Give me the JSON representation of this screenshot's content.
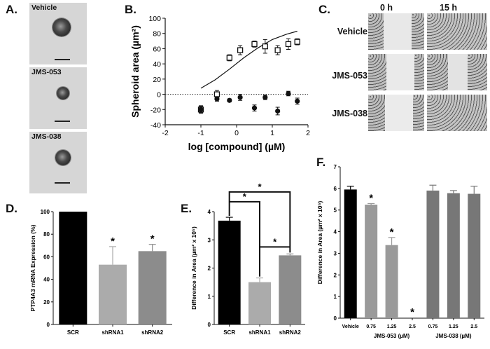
{
  "panels": {
    "A": {
      "letter": "A.",
      "images": [
        "Vehicle",
        "JMS-053",
        "JMS-038"
      ]
    },
    "B": {
      "letter": "B."
    },
    "C": {
      "letter": "C.",
      "columns": [
        "0 h",
        "15 h"
      ],
      "rows": [
        "Vehicle",
        "JMS-053",
        "JMS-038"
      ]
    },
    "D": {
      "letter": "D."
    },
    "E": {
      "letter": "E."
    },
    "F": {
      "letter": "F."
    }
  },
  "chart_data": [
    {
      "id": "B",
      "type": "scatter",
      "xlabel": "log [compound] (µM)",
      "ylabel": "Spheroid area (µm²)",
      "xlim": [
        -2,
        2
      ],
      "ylim": [
        -40,
        100
      ],
      "xticks": [
        "-2",
        "-1",
        "0",
        "1",
        "2"
      ],
      "yticks": [
        "-40",
        "-20",
        "0",
        "20",
        "40",
        "60",
        "80",
        "100"
      ],
      "series": [
        {
          "name": "open squares",
          "marker": "square-open",
          "x": [
            -1.0,
            -0.55,
            -0.2,
            0.1,
            0.5,
            0.8,
            1.15,
            1.45,
            1.7
          ],
          "y": [
            -20,
            0,
            48,
            58,
            66,
            63,
            58,
            66,
            69
          ],
          "err": [
            4,
            5,
            4,
            6,
            4,
            9,
            6,
            7,
            4
          ]
        },
        {
          "name": "filled circles",
          "marker": "circle-filled",
          "x": [
            -1.0,
            -0.55,
            -0.2,
            0.1,
            0.5,
            0.8,
            1.15,
            1.45,
            1.7
          ],
          "y": [
            -20,
            -6,
            -8,
            -4,
            -18,
            -4,
            -22,
            1,
            -9
          ],
          "err": [
            5,
            3,
            2,
            4,
            4,
            3,
            5,
            3,
            4
          ]
        }
      ],
      "fit_curve": {
        "x": [
          -1,
          -0.6,
          -0.2,
          0.2,
          0.6,
          1.0,
          1.4,
          1.7
        ],
        "y": [
          8,
          19,
          33,
          48,
          61,
          72,
          79,
          83
        ]
      },
      "reference_line_y": 0
    },
    {
      "id": "D",
      "type": "bar",
      "ylabel": "PTP4A3 mRNA Expression (%)",
      "categories": [
        "SCR",
        "shRNA1",
        "shRNA2"
      ],
      "values": [
        100,
        53,
        65
      ],
      "errors": [
        0,
        16,
        6
      ],
      "colors": [
        "#000000",
        "#ababab",
        "#8c8c8c"
      ],
      "significance": [
        "",
        "*",
        "*"
      ],
      "ylim": [
        0,
        100
      ],
      "yticks": [
        "0",
        "20",
        "40",
        "60",
        "80",
        "100"
      ]
    },
    {
      "id": "E",
      "type": "bar",
      "ylabel": "Difference in Area  (µm² x 10⁵)",
      "categories": [
        "SCR",
        "shRNA1",
        "shRNA2"
      ],
      "values": [
        3.68,
        1.5,
        2.45
      ],
      "errors": [
        0.12,
        0.15,
        0.05
      ],
      "colors": [
        "#000000",
        "#ababab",
        "#8c8c8c"
      ],
      "ylim": [
        0,
        4
      ],
      "yticks": [
        "0",
        "1",
        "2",
        "3",
        "4"
      ],
      "brackets": [
        {
          "from": 0,
          "to": 1,
          "label": "*"
        },
        {
          "from": 0,
          "to": 2,
          "label": "*"
        },
        {
          "from": 1,
          "to": 2,
          "label": "*"
        }
      ]
    },
    {
      "id": "F",
      "type": "bar",
      "ylabel": "Difference in Area (µm² x 10⁵)",
      "categories": [
        "Vehicle",
        "0.75",
        "1.25",
        "2.5",
        "0.75",
        "1.25",
        "2.5"
      ],
      "values": [
        5.95,
        5.25,
        3.38,
        0,
        5.9,
        5.78,
        5.75
      ],
      "errors": [
        0.15,
        0.05,
        0.35,
        0,
        0.25,
        0.12,
        0.35
      ],
      "colors": [
        "#000000",
        "#9a9a9a",
        "#9a9a9a",
        "#9a9a9a",
        "#777777",
        "#777777",
        "#777777"
      ],
      "significance": [
        "",
        "*",
        "*",
        "*",
        "",
        "",
        ""
      ],
      "groups": [
        {
          "label": "JMS-053 (µM)",
          "from": 1,
          "to": 3
        },
        {
          "label": "JMS-038 (µM)",
          "from": 4,
          "to": 6
        }
      ],
      "ylim": [
        0,
        7
      ],
      "yticks": [
        "0",
        "1",
        "2",
        "3",
        "4",
        "5",
        "6",
        "7"
      ]
    }
  ]
}
